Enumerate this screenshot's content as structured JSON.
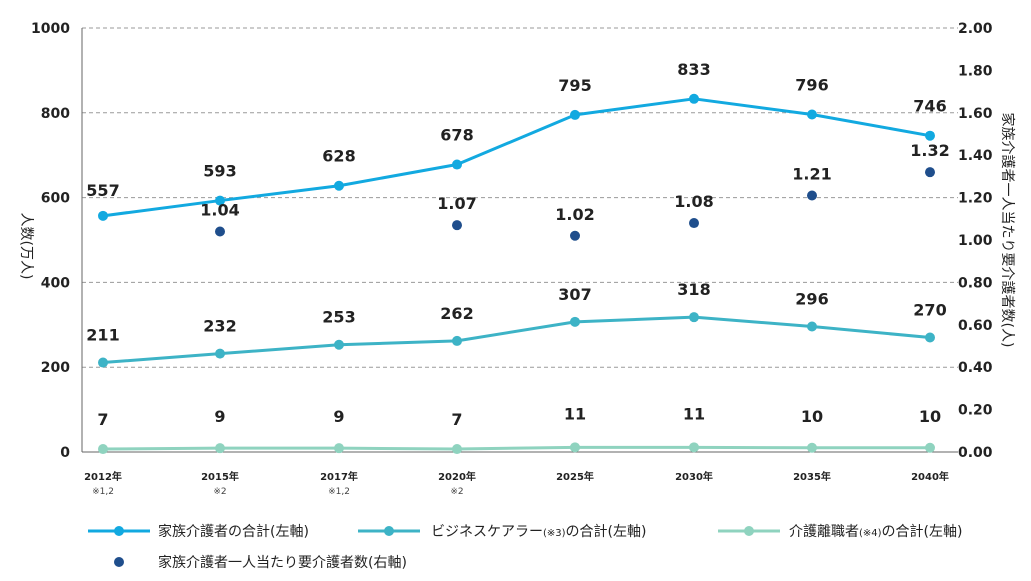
{
  "chart_data": {
    "type": "line",
    "categories": [
      "2012年",
      "2015年",
      "2017年",
      "2020年",
      "2025年",
      "2030年",
      "2035年",
      "2040年"
    ],
    "category_notes": [
      "※1,2",
      "※2",
      "※1,2",
      "※2",
      "",
      "",
      "",
      ""
    ],
    "left_axis": {
      "label": "人数(万人)",
      "range": [
        0,
        1000
      ],
      "ticks": [
        "0",
        "200",
        "400",
        "600",
        "800",
        "1000"
      ]
    },
    "right_axis": {
      "label": "家族介護者一人当たり要介護者数(人)",
      "range": [
        0,
        2.0
      ],
      "ticks": [
        "0.00",
        "0.20",
        "0.40",
        "0.60",
        "0.80",
        "1.00",
        "1.20",
        "1.40",
        "1.60",
        "1.80",
        "2.00"
      ]
    },
    "series": [
      {
        "name": "家族介護者の合計(左軸)",
        "axis": "left",
        "style": "line",
        "color": "#12a9e0",
        "values": [
          557,
          593,
          628,
          678,
          795,
          833,
          796,
          746
        ],
        "labels": [
          "557",
          "593",
          "628",
          "678",
          "795",
          "833",
          "796",
          "746"
        ]
      },
      {
        "name": "ビジネスケアラー(※3)の合計(左軸)",
        "name_parts": [
          "ビジネスケアラー",
          "(※3)",
          "の合計(左軸)"
        ],
        "axis": "left",
        "style": "line",
        "color": "#3db3c6",
        "values": [
          211,
          232,
          253,
          262,
          307,
          318,
          296,
          270
        ],
        "labels": [
          "211",
          "232",
          "253",
          "262",
          "307",
          "318",
          "296",
          "270"
        ]
      },
      {
        "name": "介護離職者(※4)の合計(左軸)",
        "name_parts": [
          "介護離職者",
          "(※4)",
          "の合計(左軸)"
        ],
        "axis": "left",
        "style": "line",
        "color": "#8fd3bf",
        "values": [
          7,
          9,
          9,
          7,
          11,
          11,
          10,
          10
        ],
        "labels": [
          "7",
          "9",
          "9",
          "7",
          "11",
          "11",
          "10",
          "10"
        ]
      },
      {
        "name": "家族介護者一人当たり要介護者数(右軸)",
        "axis": "right",
        "style": "dots",
        "color": "#1f4e8c",
        "values": [
          null,
          1.04,
          null,
          1.07,
          1.02,
          1.08,
          1.21,
          1.32
        ],
        "labels": [
          "",
          "1.04",
          "",
          "1.07",
          "1.02",
          "1.08",
          "1.21",
          "1.32"
        ]
      }
    ],
    "grid": "horizontal dashed",
    "legend_position": "bottom"
  }
}
